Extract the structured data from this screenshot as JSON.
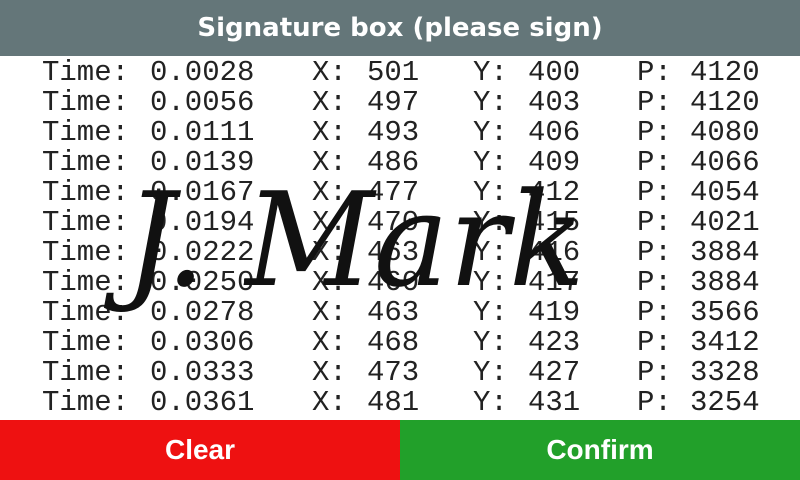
{
  "header": {
    "title": "Signature box (please sign)"
  },
  "labels": {
    "time": "Time:",
    "x": "X:",
    "y": "Y:",
    "p": "P:"
  },
  "samples": [
    {
      "time": "0.0028",
      "x": "501",
      "y": "400",
      "p": "4120"
    },
    {
      "time": "0.0056",
      "x": "497",
      "y": "403",
      "p": "4120"
    },
    {
      "time": "0.0111",
      "x": "493",
      "y": "406",
      "p": "4080"
    },
    {
      "time": "0.0139",
      "x": "486",
      "y": "409",
      "p": "4066"
    },
    {
      "time": "0.0167",
      "x": "477",
      "y": "412",
      "p": "4054"
    },
    {
      "time": "0.0194",
      "x": "470",
      "y": "415",
      "p": "4021"
    },
    {
      "time": "0.0222",
      "x": "463",
      "y": "416",
      "p": "3884"
    },
    {
      "time": "0.0250",
      "x": "460",
      "y": "417",
      "p": "3884"
    },
    {
      "time": "0.0278",
      "x": "463",
      "y": "419",
      "p": "3566"
    },
    {
      "time": "0.0306",
      "x": "468",
      "y": "423",
      "p": "3412"
    },
    {
      "time": "0.0333",
      "x": "473",
      "y": "427",
      "p": "3328"
    },
    {
      "time": "0.0361",
      "x": "481",
      "y": "431",
      "p": "3254"
    }
  ],
  "signature": {
    "text": "J. Mark"
  },
  "buttons": {
    "clear": "Clear",
    "confirm": "Confirm"
  },
  "colors": {
    "header": "#647679",
    "clear": "#ee1111",
    "confirm": "#22a02a"
  }
}
